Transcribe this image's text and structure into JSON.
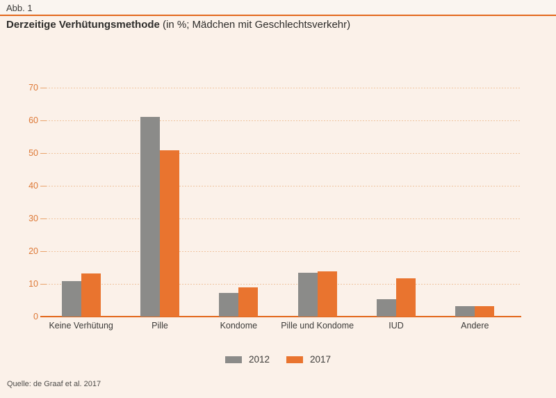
{
  "page": {
    "figure_label": "Abb. 1",
    "title_bold": "Derzeitige Verhütungsmethode",
    "title_rest": " (in %; Mädchen mit Geschlechtsverkehr)",
    "source": "Quelle: de Graaf et al. 2017"
  },
  "colors": {
    "background": "#FBF1E9",
    "header_band": "#FAF5F0",
    "accent_orange": "#E2671B",
    "bar_gray_2012": "#8B8B89",
    "bar_orange_2017": "#E9742F",
    "grid_dots": "#EFC49F",
    "tick_dash": "#E9A36B",
    "y_tick_text": "#DD7835",
    "dark_text": "#3B3A38"
  },
  "chart_data": {
    "type": "bar",
    "title": "Derzeitige Verhütungsmethode (in %; Mädchen mit Geschlechtsverkehr)",
    "categories": [
      "Keine Verhütung",
      "Pille",
      "Kondome",
      "Pille und Kondome",
      "IUD",
      "Andere"
    ],
    "series": [
      {
        "name": "2012",
        "color": "#8B8B89",
        "values": [
          10.8,
          61,
          7.2,
          13.5,
          5.4,
          3.1
        ]
      },
      {
        "name": "2017",
        "color": "#E9742F",
        "values": [
          13.2,
          50.8,
          9,
          13.9,
          11.8,
          3.1
        ]
      }
    ],
    "unit": "%",
    "ylim": [
      0,
      70
    ],
    "yticks": [
      0,
      10,
      20,
      30,
      40,
      50,
      60,
      70
    ],
    "grid": "horizontal-dotted",
    "legend_position": "bottom-center"
  }
}
